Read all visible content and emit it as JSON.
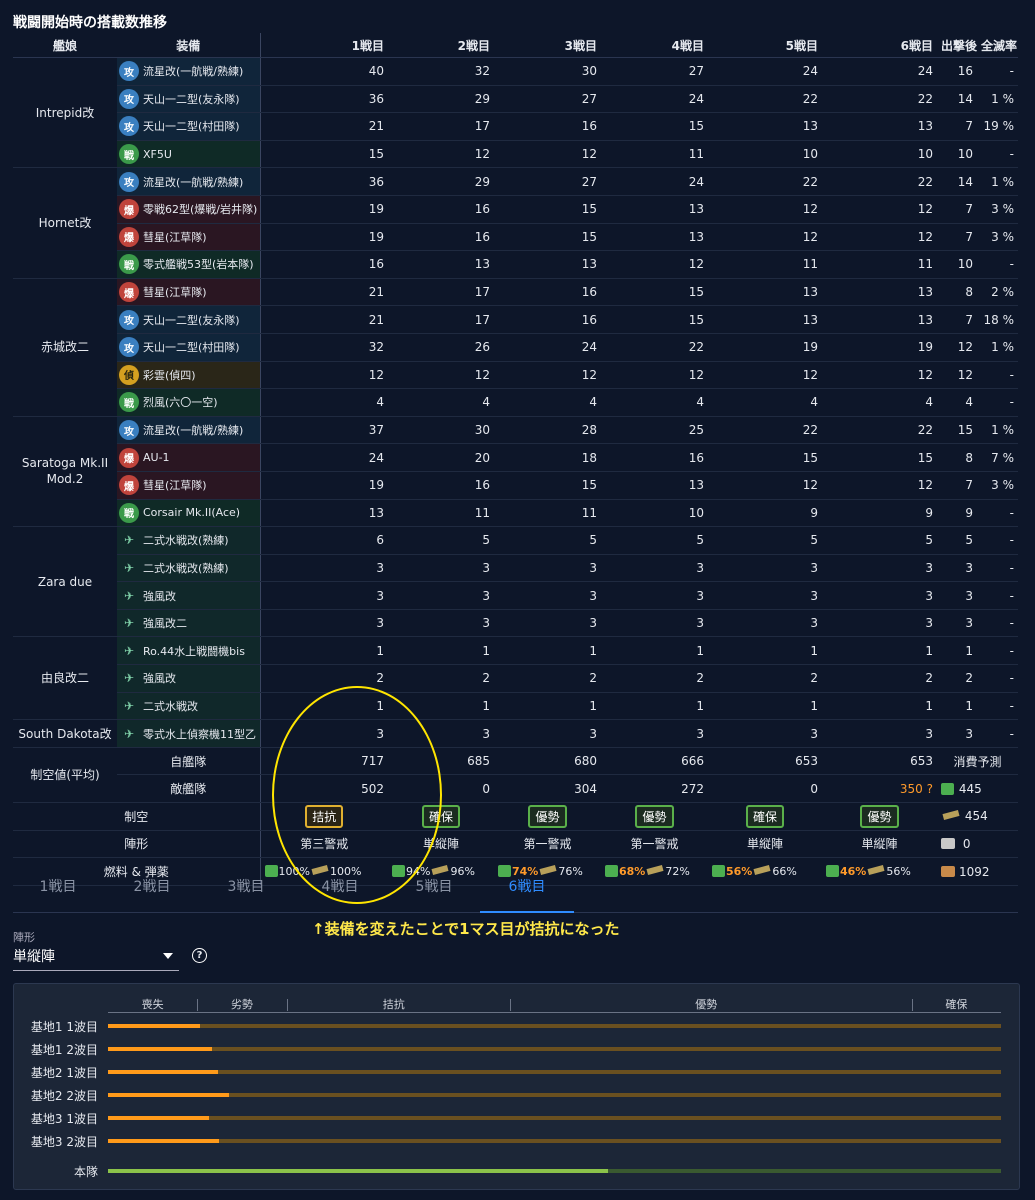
{
  "title": "戦闘開始時の搭載数推移",
  "headers": [
    "艦娘",
    "装備",
    "1戦目",
    "2戦目",
    "3戦目",
    "4戦目",
    "5戦目",
    "6戦目",
    "出撃後",
    "全滅率"
  ],
  "ships": [
    {
      "name": "Intrepid改",
      "rows": [
        {
          "type": "ft",
          "icon": "攻",
          "name": "流星改(一航戦/熟練)",
          "values": [
            "40",
            "32",
            "30",
            "27",
            "24",
            "24",
            "16",
            "-"
          ]
        },
        {
          "type": "ft",
          "icon": "攻",
          "name": "天山一二型(友永隊)",
          "values": [
            "36",
            "29",
            "27",
            "24",
            "22",
            "22",
            "14",
            "1 %"
          ]
        },
        {
          "type": "ft",
          "icon": "攻",
          "name": "天山一二型(村田隊)",
          "values": [
            "21",
            "17",
            "16",
            "15",
            "13",
            "13",
            "7",
            "19 %"
          ]
        },
        {
          "type": "green",
          "icon": "戦",
          "name": "XF5U",
          "values": [
            "15",
            "12",
            "12",
            "11",
            "10",
            "10",
            "10",
            "-"
          ]
        }
      ]
    },
    {
      "name": "Hornet改",
      "rows": [
        {
          "type": "ft",
          "icon": "攻",
          "name": "流星改(一航戦/熟練)",
          "values": [
            "36",
            "29",
            "27",
            "24",
            "22",
            "22",
            "14",
            "1 %"
          ]
        },
        {
          "type": "bomb",
          "icon": "爆",
          "name": "零戦62型(爆戦/岩井隊)",
          "values": [
            "19",
            "16",
            "15",
            "13",
            "12",
            "12",
            "7",
            "3 %"
          ]
        },
        {
          "type": "bomb",
          "icon": "爆",
          "name": "彗星(江草隊)",
          "values": [
            "19",
            "16",
            "15",
            "13",
            "12",
            "12",
            "7",
            "3 %"
          ]
        },
        {
          "type": "green",
          "icon": "戦",
          "name": "零式艦戦53型(岩本隊)",
          "values": [
            "16",
            "13",
            "13",
            "12",
            "11",
            "11",
            "10",
            "-"
          ]
        }
      ]
    },
    {
      "name": "赤城改二",
      "rows": [
        {
          "type": "bomb",
          "icon": "爆",
          "name": "彗星(江草隊)",
          "values": [
            "21",
            "17",
            "16",
            "15",
            "13",
            "13",
            "8",
            "2 %"
          ]
        },
        {
          "type": "ft",
          "icon": "攻",
          "name": "天山一二型(友永隊)",
          "values": [
            "21",
            "17",
            "16",
            "15",
            "13",
            "13",
            "7",
            "18 %"
          ]
        },
        {
          "type": "ft",
          "icon": "攻",
          "name": "天山一二型(村田隊)",
          "values": [
            "32",
            "26",
            "24",
            "22",
            "19",
            "19",
            "12",
            "1 %"
          ]
        },
        {
          "type": "yellow",
          "icon": "偵",
          "name": "彩雲(偵四)",
          "values": [
            "12",
            "12",
            "12",
            "12",
            "12",
            "12",
            "12",
            "-"
          ]
        },
        {
          "type": "green",
          "icon": "戦",
          "name": "烈風(六〇一空)",
          "values": [
            "4",
            "4",
            "4",
            "4",
            "4",
            "4",
            "4",
            "-"
          ]
        }
      ]
    },
    {
      "name": "Saratoga Mk.II Mod.2",
      "rows": [
        {
          "type": "ft",
          "icon": "攻",
          "name": "流星改(一航戦/熟練)",
          "values": [
            "37",
            "30",
            "28",
            "25",
            "22",
            "22",
            "15",
            "1 %"
          ]
        },
        {
          "type": "bomb",
          "icon": "爆",
          "name": "AU-1",
          "values": [
            "24",
            "20",
            "18",
            "16",
            "15",
            "15",
            "8",
            "7 %"
          ]
        },
        {
          "type": "bomb",
          "icon": "爆",
          "name": "彗星(江草隊)",
          "values": [
            "19",
            "16",
            "15",
            "13",
            "12",
            "12",
            "7",
            "3 %"
          ]
        },
        {
          "type": "green",
          "icon": "戦",
          "name": "Corsair Mk.II(Ace)",
          "values": [
            "13",
            "11",
            "11",
            "10",
            "9",
            "9",
            "9",
            "-"
          ]
        }
      ]
    },
    {
      "name": "Zara due",
      "rows": [
        {
          "type": "sea",
          "icon": "✈",
          "name": "二式水戦改(熟練)",
          "values": [
            "6",
            "5",
            "5",
            "5",
            "5",
            "5",
            "5",
            "-"
          ]
        },
        {
          "type": "sea",
          "icon": "✈",
          "name": "二式水戦改(熟練)",
          "values": [
            "3",
            "3",
            "3",
            "3",
            "3",
            "3",
            "3",
            "-"
          ]
        },
        {
          "type": "sea",
          "icon": "✈",
          "name": "強風改",
          "values": [
            "3",
            "3",
            "3",
            "3",
            "3",
            "3",
            "3",
            "-"
          ]
        },
        {
          "type": "sea",
          "icon": "✈",
          "name": "強風改二",
          "values": [
            "3",
            "3",
            "3",
            "3",
            "3",
            "3",
            "3",
            "-"
          ]
        }
      ]
    },
    {
      "name": "由良改二",
      "rows": [
        {
          "type": "sea",
          "icon": "✈",
          "name": "Ro.44水上戦闘機bis",
          "values": [
            "1",
            "1",
            "1",
            "1",
            "1",
            "1",
            "1",
            "-"
          ]
        },
        {
          "type": "sea",
          "icon": "✈",
          "name": "強風改",
          "values": [
            "2",
            "2",
            "2",
            "2",
            "2",
            "2",
            "2",
            "-"
          ]
        },
        {
          "type": "sea",
          "icon": "✈",
          "name": "二式水戦改",
          "values": [
            "1",
            "1",
            "1",
            "1",
            "1",
            "1",
            "1",
            "-"
          ]
        }
      ]
    },
    {
      "name": "South Dakota改",
      "rows": [
        {
          "type": "sea",
          "icon": "✈",
          "name": "零式水上偵察機11型乙",
          "values": [
            "3",
            "3",
            "3",
            "3",
            "3",
            "3",
            "3",
            "-"
          ]
        }
      ]
    }
  ],
  "summary": {
    "air_label": "制空値(平均)",
    "own_label": "自艦隊",
    "own": [
      "717",
      "685",
      "680",
      "666",
      "653",
      "653"
    ],
    "enemy_label": "敵艦隊",
    "enemy": [
      "502",
      "0",
      "304",
      "272",
      "0",
      "350 ?"
    ],
    "consume_label": "消費予測",
    "consume_fuel": "445",
    "consume_ammo": "454",
    "consume_steel": "0",
    "consume_bauxite": "1092",
    "control_label": "制空",
    "control": [
      "拮抗",
      "確保",
      "優勢",
      "優勢",
      "確保",
      "優勢"
    ],
    "formation_label": "陣形",
    "formation": [
      "第三警戒",
      "単縦陣",
      "第一警戒",
      "第一警戒",
      "単縦陣",
      "単縦陣"
    ],
    "supply_label": "燃料 & 弾薬",
    "fuel": [
      "100%",
      "94%",
      "74%",
      "68%",
      "56%",
      "46%"
    ],
    "ammo": [
      "100%",
      "96%",
      "76%",
      "72%",
      "66%",
      "56%"
    ]
  },
  "tabs": [
    "1戦目",
    "2戦目",
    "3戦目",
    "4戦目",
    "5戦目",
    "6戦目"
  ],
  "active_tab": 5,
  "annotation": "↑装備を変えたことで1マス目が拮抗になった",
  "formation_select": {
    "label": "陣形",
    "value": "単縦陣"
  },
  "result_scale": [
    "喪失",
    "劣勢",
    "拮抗",
    "優勢",
    "確保"
  ],
  "result_rows": [
    {
      "label": "基地1 1波目",
      "fill": 0.103
    },
    {
      "label": "基地1 2波目",
      "fill": 0.116
    },
    {
      "label": "基地2 1波目",
      "fill": 0.123
    },
    {
      "label": "基地2 2波目",
      "fill": 0.135
    },
    {
      "label": "基地3 1波目",
      "fill": 0.113
    },
    {
      "label": "基地3 2波目",
      "fill": 0.124
    },
    {
      "label": "本隊",
      "fill": 0.56,
      "green": true
    }
  ]
}
